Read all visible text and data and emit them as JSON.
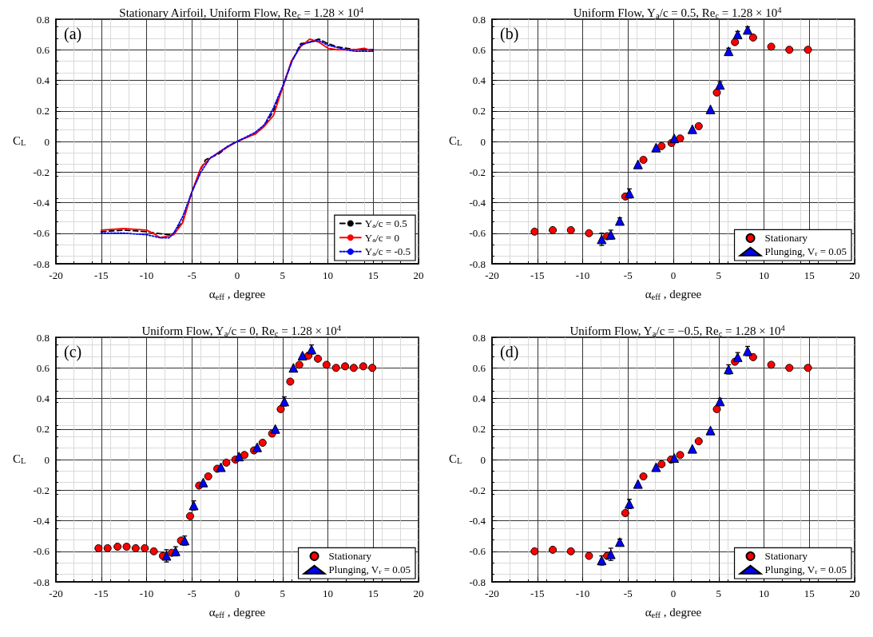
{
  "chart_data": [
    {
      "type": "line",
      "title": "Stationary Airfoil, Uniform Flow, Re$_{c}$ = 1.28 × 10$^{4}$",
      "xlabel": "α$_{eff}$ , degree",
      "ylabel": "C$_{L}$",
      "annotations": [
        "(a)"
      ],
      "xlim": [
        -20,
        20
      ],
      "xticks": [
        -20,
        -15,
        -10,
        -5,
        0,
        5,
        10,
        15,
        20
      ],
      "ylim": [
        -0.8,
        0.8
      ],
      "yticks": [
        -0.8,
        -0.6,
        -0.4,
        -0.2,
        0,
        0.2,
        0.4,
        0.6,
        0.8
      ],
      "grid": true,
      "legend": "bottom right",
      "marker": "none",
      "series": [
        {
          "name": "Y$_{a}$/c = 0.5",
          "color": "#000000",
          "line_style": "dashed",
          "x": [
            -15,
            -12.5,
            -10,
            -9,
            -7.5,
            -7,
            -6,
            -5,
            -4,
            -3.5,
            -2,
            -1,
            0,
            2,
            3,
            4,
            5,
            6,
            7,
            8,
            9,
            10,
            11,
            13,
            15
          ],
          "values": [
            -0.59,
            -0.58,
            -0.59,
            -0.6,
            -0.61,
            -0.6,
            -0.52,
            -0.33,
            -0.18,
            -0.12,
            -0.08,
            -0.03,
            0,
            0.05,
            0.1,
            0.2,
            0.35,
            0.52,
            0.64,
            0.65,
            0.67,
            0.64,
            0.62,
            0.6,
            0.6
          ]
        },
        {
          "name": "Y$_{a}$/c = 0",
          "color": "#ff0000",
          "line_style": "solid",
          "x": [
            -15,
            -12.5,
            -10,
            -9,
            -8.5,
            -7,
            -6,
            -5,
            -4,
            -3,
            -2,
            0,
            2,
            3,
            4,
            5,
            6,
            7,
            8,
            9,
            10,
            11,
            12,
            13,
            14,
            15
          ],
          "values": [
            -0.58,
            -0.57,
            -0.58,
            -0.61,
            -0.63,
            -0.61,
            -0.53,
            -0.33,
            -0.17,
            -0.11,
            -0.07,
            0,
            0.05,
            0.1,
            0.17,
            0.35,
            0.53,
            0.62,
            0.67,
            0.65,
            0.61,
            0.6,
            0.6,
            0.6,
            0.61,
            0.59
          ]
        },
        {
          "name": "Y$_{a}$/c = -0.5",
          "color": "#0000ff",
          "line_style": "dotted",
          "x": [
            -15,
            -12.5,
            -10,
            -8.5,
            -7.5,
            -7,
            -6,
            -5,
            -4,
            -3,
            -2,
            -1,
            0,
            2,
            3,
            4,
            5,
            6,
            7,
            8,
            9,
            10,
            12,
            13,
            15
          ],
          "values": [
            -0.6,
            -0.6,
            -0.61,
            -0.63,
            -0.63,
            -0.6,
            -0.49,
            -0.33,
            -0.2,
            -0.11,
            -0.07,
            -0.03,
            0,
            0.06,
            0.11,
            0.22,
            0.36,
            0.52,
            0.63,
            0.65,
            0.66,
            0.63,
            0.6,
            0.59,
            0.59
          ]
        }
      ]
    },
    {
      "type": "scatter",
      "title": "Uniform Flow, Y$_{a}$/c = 0.5, Re$_{c}$ = 1.28 × 10$^{4}$",
      "xlabel": "α$_{eff}$ , degree",
      "ylabel": "C$_{L}$",
      "annotations": [
        "(b)"
      ],
      "xlim": [
        -20,
        20
      ],
      "xticks": [
        -20,
        -15,
        -10,
        -5,
        0,
        5,
        10,
        15,
        20
      ],
      "ylim": [
        -0.8,
        0.8
      ],
      "yticks": [
        -0.8,
        -0.6,
        -0.4,
        -0.2,
        0,
        0.2,
        0.4,
        0.6,
        0.8
      ],
      "grid": true,
      "legend": "bottom right",
      "series": [
        {
          "name": "Stationary",
          "color": "#ff0000",
          "marker": "circle",
          "x": [
            -15.3,
            -13.3,
            -11.3,
            -9.3,
            -7.3,
            -5.3,
            -3.3,
            -1.3,
            -0.2,
            0.75,
            2.8,
            4.8,
            6.8,
            8.8,
            10.8,
            12.8,
            14.85
          ],
          "values": [
            -0.59,
            -0.58,
            -0.58,
            -0.6,
            -0.62,
            -0.36,
            -0.12,
            -0.03,
            -0.01,
            0.02,
            0.1,
            0.32,
            0.65,
            0.68,
            0.62,
            0.6,
            0.6
          ]
        },
        {
          "name": "Plunging, V$_{r}$ = 0.05",
          "color": "#0000ff",
          "marker": "triangle",
          "x": [
            -7.9,
            -6.9,
            -5.9,
            -4.85,
            -3.9,
            -1.9,
            0.1,
            2.1,
            4.1,
            5.15,
            6.1,
            7.1,
            8.2
          ],
          "values": [
            -0.64,
            -0.61,
            -0.52,
            -0.34,
            -0.15,
            -0.04,
            0.02,
            0.08,
            0.21,
            0.37,
            0.59,
            0.7,
            0.73
          ],
          "errors": [
            0.04,
            0.03,
            0.02,
            0.03,
            null,
            null,
            null,
            null,
            null,
            0.02,
            0.02,
            0.02,
            0.02
          ]
        }
      ]
    },
    {
      "type": "scatter",
      "title": "Uniform Flow, Y$_{a}$/c = 0, Re$_{c}$ = 1.28 × 10$^{4}$",
      "xlabel": "α$_{eff}$ , degree",
      "ylabel": "C$_{L}$",
      "annotations": [
        "(c)"
      ],
      "xlim": [
        -20,
        20
      ],
      "xticks": [
        -20,
        -15,
        -10,
        -5,
        0,
        5,
        10,
        15,
        20
      ],
      "ylim": [
        -0.8,
        0.8
      ],
      "yticks": [
        -0.8,
        -0.6,
        -0.4,
        -0.2,
        0,
        0.2,
        0.4,
        0.6,
        0.8
      ],
      "grid": true,
      "legend": "bottom right",
      "series": [
        {
          "name": "Stationary",
          "color": "#ff0000",
          "marker": "circle",
          "x": [
            -15.3,
            -14.3,
            -13.2,
            -12.2,
            -11.2,
            -10.2,
            -9.2,
            -8.2,
            -7.2,
            -6.2,
            -5.2,
            -4.2,
            -3.2,
            -2.2,
            -1.2,
            -0.2,
            0.8,
            1.85,
            2.8,
            3.85,
            4.8,
            5.85,
            6.85,
            7.85,
            8.9,
            9.85,
            10.9,
            11.9,
            12.85,
            13.9,
            14.9
          ],
          "values": [
            -0.58,
            -0.58,
            -0.57,
            -0.57,
            -0.58,
            -0.58,
            -0.6,
            -0.63,
            -0.61,
            -0.53,
            -0.37,
            -0.17,
            -0.11,
            -0.06,
            -0.02,
            0,
            0.03,
            0.06,
            0.11,
            0.17,
            0.33,
            0.51,
            0.62,
            0.68,
            0.66,
            0.62,
            0.6,
            0.61,
            0.6,
            0.61,
            0.6
          ]
        },
        {
          "name": "Plunging, V$_{r}$ = 0.05",
          "color": "#0000ff",
          "marker": "triangle",
          "x": [
            -7.8,
            -6.8,
            -5.8,
            -4.8,
            -3.75,
            -1.8,
            0.2,
            2.2,
            4.2,
            5.2,
            6.2,
            7.2,
            8.2
          ],
          "values": [
            -0.63,
            -0.6,
            -0.53,
            -0.3,
            -0.15,
            -0.05,
            0.02,
            0.08,
            0.2,
            0.38,
            0.6,
            0.68,
            0.72
          ],
          "errors": [
            0.04,
            0.03,
            0.03,
            0.03,
            null,
            null,
            null,
            null,
            null,
            0.03,
            null,
            null,
            0.03
          ]
        }
      ]
    },
    {
      "type": "scatter",
      "title": "Uniform Flow, Y$_{a}$/c = −0.5, Re$_{c}$ = 1.28 × 10$^{4}$",
      "xlabel": "α$_{eff}$ , degree",
      "ylabel": "C$_{L}$",
      "annotations": [
        "(d)"
      ],
      "xlim": [
        -20,
        20
      ],
      "xticks": [
        -20,
        -15,
        -10,
        -5,
        0,
        5,
        10,
        15,
        20
      ],
      "ylim": [
        -0.8,
        0.8
      ],
      "yticks": [
        -0.8,
        -0.6,
        -0.4,
        -0.2,
        0,
        0.2,
        0.4,
        0.6,
        0.8
      ],
      "grid": true,
      "legend": "bottom right",
      "series": [
        {
          "name": "Stationary",
          "color": "#ff0000",
          "marker": "circle",
          "x": [
            -15.3,
            -13.3,
            -11.3,
            -9.3,
            -7.3,
            -5.3,
            -3.3,
            -1.3,
            -0.25,
            0.75,
            2.8,
            4.8,
            6.8,
            8.8,
            10.8,
            12.8,
            14.85
          ],
          "values": [
            -0.6,
            -0.59,
            -0.6,
            -0.63,
            -0.63,
            -0.35,
            -0.11,
            -0.03,
            0,
            0.03,
            0.12,
            0.33,
            0.64,
            0.67,
            0.62,
            0.6,
            0.6
          ]
        },
        {
          "name": "Plunging, V$_{r}$ = 0.05",
          "color": "#0000ff",
          "marker": "triangle",
          "x": [
            -7.9,
            -6.9,
            -5.9,
            -4.85,
            -3.9,
            -1.9,
            0.1,
            2.1,
            4.1,
            5.15,
            6.1,
            7.1,
            8.2
          ],
          "values": [
            -0.66,
            -0.62,
            -0.54,
            -0.29,
            -0.16,
            -0.05,
            0.01,
            0.07,
            0.19,
            0.38,
            0.59,
            0.67,
            0.71
          ],
          "errors": [
            0.03,
            0.04,
            0.02,
            0.03,
            null,
            null,
            null,
            null,
            null,
            0.02,
            0.03,
            0.03,
            0.03
          ]
        }
      ]
    }
  ]
}
